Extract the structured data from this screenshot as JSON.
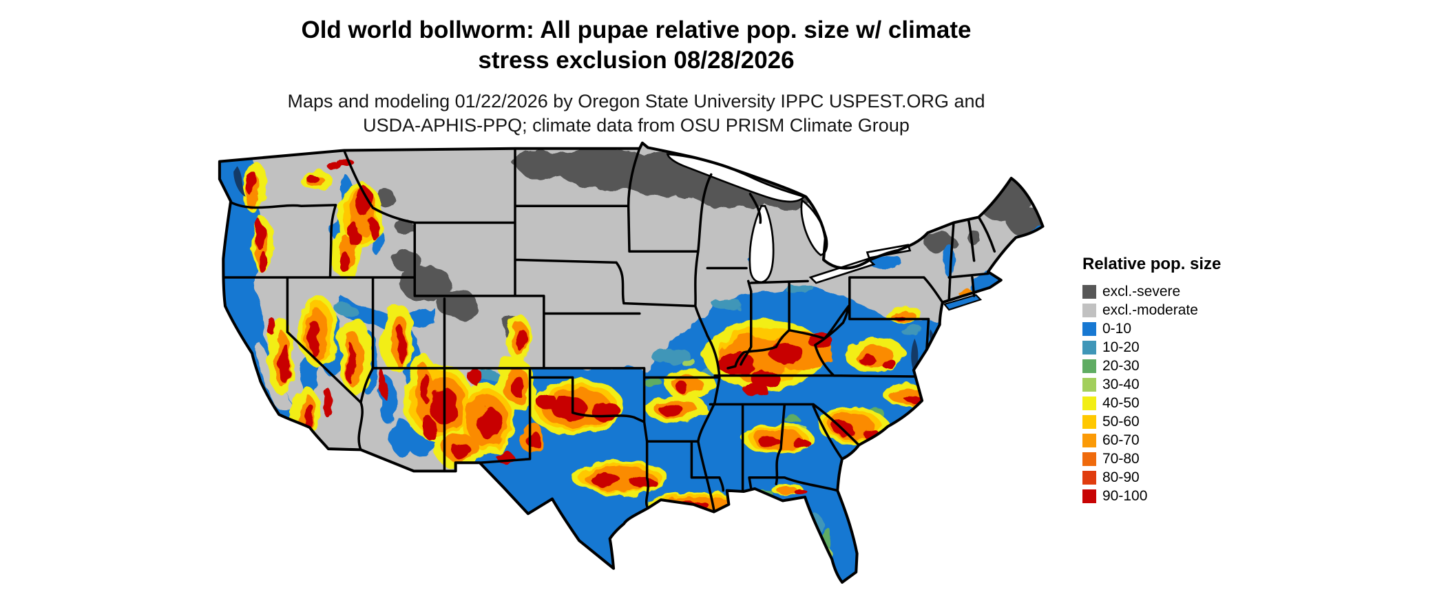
{
  "title": {
    "line1": "Old world bollworm: All pupae relative pop. size w/ climate",
    "line2": "stress exclusion 08/28/2026"
  },
  "subtitle": {
    "line1": "Maps and modeling 01/22/2026 by Oregon State University IPPC USPEST.ORG and",
    "line2": "USDA-APHIS-PPQ; climate data from OSU PRISM Climate Group"
  },
  "legend": {
    "title": "Relative pop. size",
    "items": [
      {
        "label": "excl.-severe",
        "color": "#575757"
      },
      {
        "label": "excl.-moderate",
        "color": "#c1c1c1"
      },
      {
        "label": "0-10",
        "color": "#1778d2"
      },
      {
        "label": "10-20",
        "color": "#3f96b8"
      },
      {
        "label": "20-30",
        "color": "#5fac63"
      },
      {
        "label": "30-40",
        "color": "#a2cf5c"
      },
      {
        "label": "40-50",
        "color": "#f2ee14"
      },
      {
        "label": "50-60",
        "color": "#ffc800"
      },
      {
        "label": "60-70",
        "color": "#fb9a06"
      },
      {
        "label": "70-80",
        "color": "#ef6a0c"
      },
      {
        "label": "80-90",
        "color": "#e03c0e"
      },
      {
        "label": "90-100",
        "color": "#c80404"
      }
    ]
  }
}
